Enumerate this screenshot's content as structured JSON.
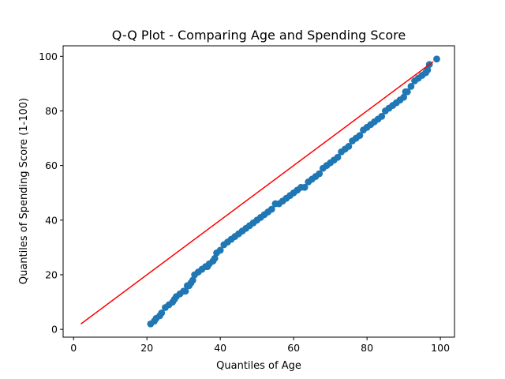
{
  "chart_data": {
    "type": "scatter",
    "title": "Q-Q Plot - Comparing Age and Spending Score",
    "xlabel": "Quantiles of Age",
    "ylabel": "Quantiles of Spending Score (1-100)",
    "xlim": [
      -2.85,
      103.85
    ],
    "ylim": [
      -2.85,
      103.85
    ],
    "xticks": [
      0,
      20,
      40,
      60,
      80,
      100
    ],
    "yticks": [
      0,
      20,
      40,
      60,
      80,
      100
    ],
    "grid": false,
    "colors": {
      "points": "#1f77b4",
      "reference_line": "#ff0000",
      "axes": "#000000"
    },
    "reference_line": {
      "x": [
        2,
        98
      ],
      "y": [
        2,
        98
      ]
    },
    "points": {
      "x": [
        21,
        22,
        22.5,
        23.5,
        24,
        25,
        26,
        27,
        27.5,
        28,
        29,
        30,
        30.5,
        31,
        31.5,
        32,
        32.5,
        33,
        34,
        35,
        36,
        36.5,
        37,
        38,
        38.5,
        39,
        40,
        41,
        42,
        43,
        44,
        45,
        46,
        47,
        48,
        49,
        50,
        51,
        52,
        53,
        54,
        55,
        56,
        57,
        58,
        59,
        60,
        61,
        62,
        63,
        64,
        65,
        66,
        67,
        68,
        69,
        70,
        71,
        72,
        73,
        74,
        75,
        76,
        77,
        78,
        79,
        80,
        81,
        82,
        83,
        84,
        85,
        86,
        87,
        88,
        89,
        90,
        90.5,
        91,
        92,
        93,
        94,
        95,
        96,
        96.5,
        97,
        99
      ],
      "y": [
        2,
        3,
        4,
        5,
        6,
        8,
        9,
        10,
        11,
        12,
        13,
        14,
        14,
        16,
        16,
        17,
        18,
        20,
        21,
        22,
        23,
        23,
        24,
        25,
        26,
        28,
        29,
        31,
        32,
        33,
        34,
        35,
        36,
        37,
        38,
        39,
        40,
        41,
        42,
        43,
        44,
        46,
        46,
        47,
        48,
        49,
        50,
        51,
        52,
        52,
        54,
        55,
        56,
        57,
        59,
        60,
        61,
        62,
        63,
        65,
        66,
        67,
        69,
        70,
        71,
        73,
        74,
        75,
        76,
        77,
        78,
        80,
        81,
        82,
        83,
        84,
        85,
        87,
        87,
        89,
        91,
        92,
        93,
        94,
        95,
        97,
        99
      ]
    }
  }
}
